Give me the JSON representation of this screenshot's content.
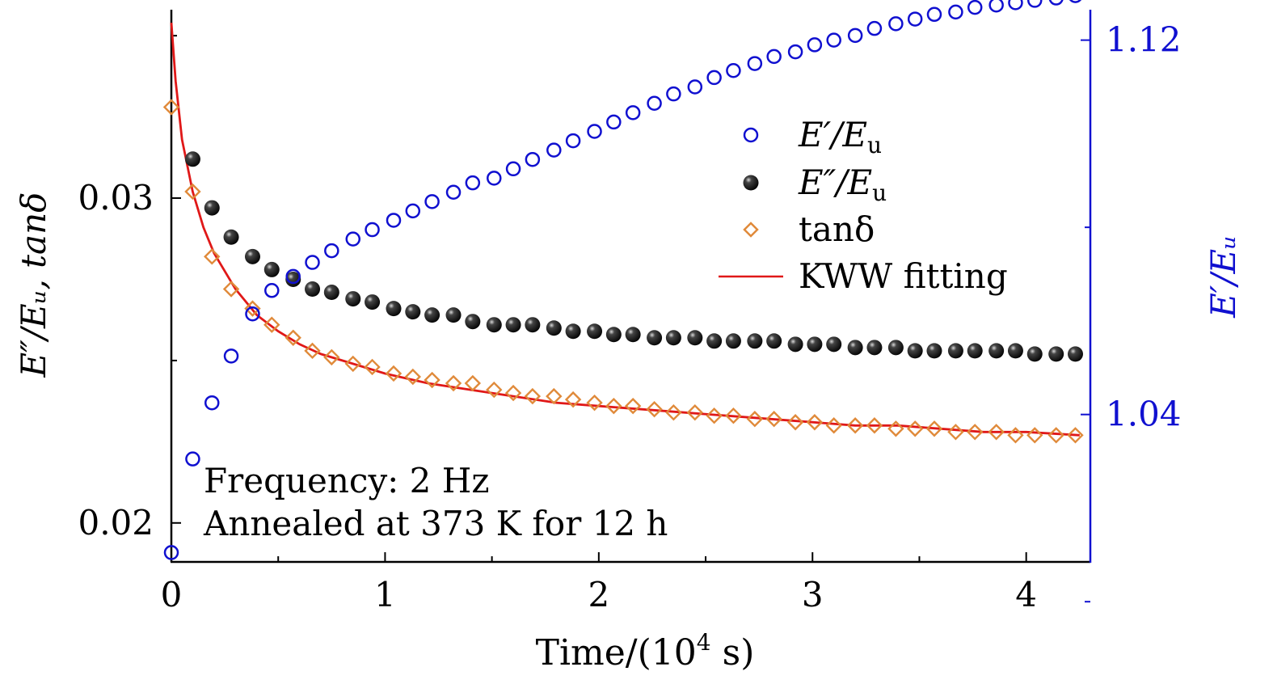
{
  "chart_data": {
    "type": "scatter",
    "title": "",
    "xlabel": {
      "text": "Time/(10",
      "sup": "4",
      "tail": " s)"
    },
    "ylabel_left": "E″/Eᵤ, tanδ",
    "ylabel_right": "E′/Eᵤ",
    "x_axis": {
      "range": [
        0,
        4.3
      ],
      "ticks": [
        0,
        1,
        2,
        3,
        4
      ],
      "tick_labels": [
        "0",
        "1",
        "2",
        "3",
        "4"
      ],
      "minor_ticks": [
        0.5,
        1.5,
        2.5,
        3.5
      ]
    },
    "y_left": {
      "range": [
        0.0188,
        0.0358
      ],
      "ticks": [
        0.02,
        0.03
      ],
      "tick_labels": [
        "0.02",
        "0.03"
      ],
      "minor_ticks": [
        0.025,
        0.035
      ]
    },
    "y_right": {
      "range": [
        1.0085,
        1.1265
      ],
      "ticks": [
        1.04,
        1.12
      ],
      "tick_labels": [
        "1.04",
        "1.12"
      ],
      "minor_ticks": [
        1.0,
        1.08
      ]
    },
    "colors": {
      "e_prime": "#1010d0",
      "e_double": "#000000",
      "tan": "#e08a3a",
      "fit": "#e01818",
      "right_axis": "#1010d0"
    },
    "legend": {
      "position": "top-right",
      "entries": [
        {
          "key": "e_prime",
          "main": "E′/E",
          "sub": "u"
        },
        {
          "key": "e_double",
          "main": "E″/E",
          "sub": "u"
        },
        {
          "key": "tan",
          "main": "tanδ",
          "sub": ""
        },
        {
          "key": "fit",
          "main": "KWW fitting",
          "sub": ""
        }
      ]
    },
    "annotations": [
      "Frequency: 2 Hz",
      "Annealed at 373 K for 12 h"
    ],
    "series": [
      {
        "name": "E′/Eu",
        "key": "e_prime",
        "axis": "right",
        "marker": "open-circle",
        "x": [
          0.0,
          0.1,
          0.19,
          0.28,
          0.38,
          0.47,
          0.57,
          0.66,
          0.75,
          0.85,
          0.94,
          1.04,
          1.13,
          1.22,
          1.32,
          1.41,
          1.51,
          1.6,
          1.69,
          1.79,
          1.88,
          1.98,
          2.07,
          2.16,
          2.26,
          2.35,
          2.45,
          2.54,
          2.63,
          2.73,
          2.82,
          2.92,
          3.01,
          3.1,
          3.2,
          3.29,
          3.39,
          3.48,
          3.57,
          3.67,
          3.76,
          3.86,
          3.95,
          4.04,
          4.14,
          4.23
        ],
        "y": [
          1.0105,
          1.0305,
          1.0425,
          1.0525,
          1.0615,
          1.0665,
          1.0695,
          1.0725,
          1.075,
          1.0775,
          1.0795,
          1.0815,
          1.0835,
          1.0855,
          1.0875,
          1.0895,
          1.0905,
          1.0925,
          1.0945,
          1.0965,
          1.0985,
          1.1005,
          1.1025,
          1.1045,
          1.1065,
          1.1085,
          1.11,
          1.112,
          1.1135,
          1.115,
          1.1165,
          1.1175,
          1.119,
          1.12,
          1.121,
          1.1225,
          1.1235,
          1.1245,
          1.1255,
          1.126,
          1.127,
          1.1275,
          1.128,
          1.1285,
          1.129,
          1.1295
        ]
      },
      {
        "name": "E″/Eu",
        "key": "e_double",
        "axis": "left",
        "marker": "filled-sphere",
        "x": [
          0.1,
          0.19,
          0.28,
          0.38,
          0.47,
          0.57,
          0.66,
          0.75,
          0.85,
          0.94,
          1.04,
          1.13,
          1.22,
          1.32,
          1.41,
          1.51,
          1.6,
          1.69,
          1.79,
          1.88,
          1.98,
          2.07,
          2.16,
          2.26,
          2.35,
          2.45,
          2.54,
          2.63,
          2.73,
          2.82,
          2.92,
          3.01,
          3.1,
          3.2,
          3.29,
          3.39,
          3.48,
          3.57,
          3.67,
          3.76,
          3.86,
          3.95,
          4.04,
          4.14,
          4.23
        ],
        "y": [
          0.0312,
          0.0297,
          0.0288,
          0.0282,
          0.0278,
          0.0275,
          0.0272,
          0.0271,
          0.0269,
          0.0268,
          0.0266,
          0.0265,
          0.0264,
          0.0264,
          0.0262,
          0.0261,
          0.0261,
          0.0261,
          0.026,
          0.0259,
          0.0259,
          0.0258,
          0.0258,
          0.0257,
          0.0257,
          0.0257,
          0.0256,
          0.0256,
          0.0256,
          0.0256,
          0.0255,
          0.0255,
          0.0255,
          0.0254,
          0.0254,
          0.0254,
          0.0253,
          0.0253,
          0.0253,
          0.0253,
          0.0253,
          0.0253,
          0.0252,
          0.0252,
          0.0252
        ]
      },
      {
        "name": "tanδ",
        "key": "tan",
        "axis": "left",
        "marker": "open-diamond",
        "x": [
          0.0,
          0.1,
          0.19,
          0.28,
          0.38,
          0.47,
          0.57,
          0.66,
          0.75,
          0.85,
          0.94,
          1.04,
          1.13,
          1.22,
          1.32,
          1.41,
          1.51,
          1.6,
          1.69,
          1.79,
          1.88,
          1.98,
          2.07,
          2.16,
          2.26,
          2.35,
          2.45,
          2.54,
          2.63,
          2.73,
          2.82,
          2.92,
          3.01,
          3.1,
          3.2,
          3.29,
          3.39,
          3.48,
          3.57,
          3.67,
          3.76,
          3.86,
          3.95,
          4.04,
          4.14,
          4.23
        ],
        "y": [
          0.0328,
          0.0302,
          0.0282,
          0.0272,
          0.0266,
          0.0261,
          0.0257,
          0.0253,
          0.0251,
          0.0249,
          0.0248,
          0.0246,
          0.0245,
          0.0244,
          0.0243,
          0.0243,
          0.0241,
          0.024,
          0.0239,
          0.0239,
          0.0238,
          0.0237,
          0.0236,
          0.0236,
          0.0235,
          0.0234,
          0.0234,
          0.0233,
          0.0233,
          0.0232,
          0.0232,
          0.0231,
          0.0231,
          0.023,
          0.023,
          0.023,
          0.0229,
          0.0229,
          0.0229,
          0.0228,
          0.0228,
          0.0228,
          0.0227,
          0.0227,
          0.0227,
          0.0227
        ]
      },
      {
        "name": "KWW fitting",
        "key": "fit",
        "axis": "left",
        "marker": "line",
        "x": [
          0.0,
          0.02,
          0.05,
          0.1,
          0.15,
          0.2,
          0.3,
          0.4,
          0.5,
          0.6,
          0.7,
          0.8,
          1.0,
          1.2,
          1.4,
          1.6,
          1.8,
          2.0,
          2.2,
          2.4,
          2.6,
          2.8,
          3.0,
          3.2,
          3.4,
          3.6,
          3.8,
          4.0,
          4.25
        ],
        "y": [
          0.0354,
          0.0336,
          0.0318,
          0.0302,
          0.0291,
          0.0283,
          0.0272,
          0.0264,
          0.0259,
          0.0255,
          0.0252,
          0.025,
          0.0246,
          0.0243,
          0.0241,
          0.0239,
          0.0237,
          0.0236,
          0.0235,
          0.0234,
          0.0233,
          0.0232,
          0.0231,
          0.023,
          0.023,
          0.0229,
          0.0228,
          0.0228,
          0.0227
        ]
      }
    ]
  }
}
